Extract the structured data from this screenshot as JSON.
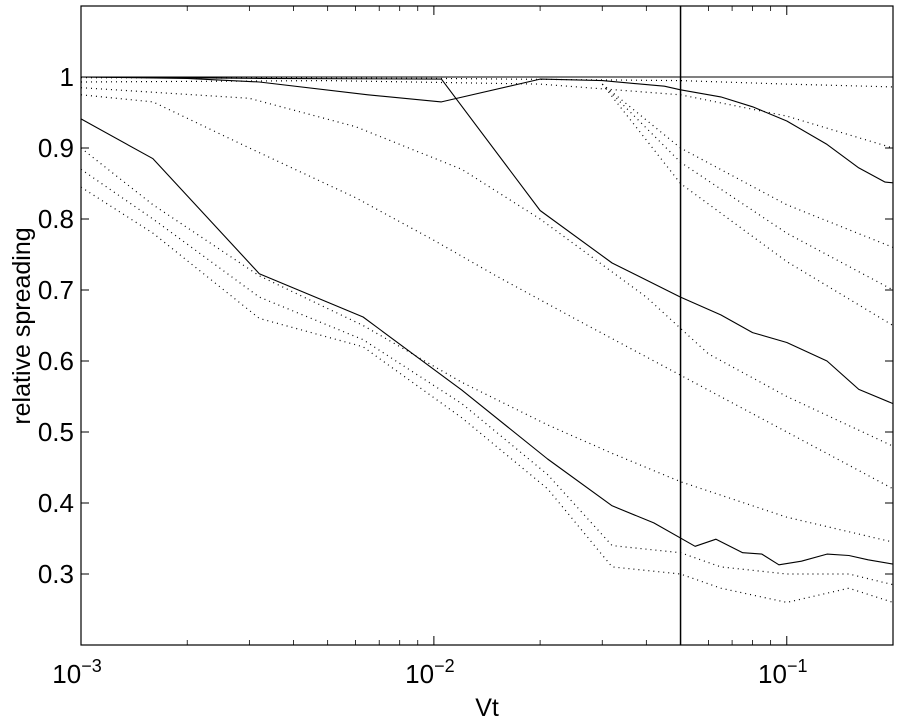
{
  "chart_data": {
    "type": "line",
    "xscale": "log",
    "xlim": [
      0.001,
      0.2
    ],
    "ylim": [
      0.2,
      1.1
    ],
    "xlabel": "Vt",
    "ylabel": "relative spreading",
    "grid": false,
    "x_ticks": [
      {
        "value": 0.001,
        "base": "10",
        "exp": "−3"
      },
      {
        "value": 0.01,
        "base": "10",
        "exp": "−2"
      },
      {
        "value": 0.1,
        "base": "10",
        "exp": "−1"
      }
    ],
    "y_ticks": [
      0.3,
      0.4,
      0.5,
      0.6,
      0.7,
      0.8,
      0.9,
      1
    ],
    "y_tick_labels": [
      "0.3",
      "0.4",
      "0.5",
      "0.6",
      "0.7",
      "0.8",
      "0.9",
      "1"
    ],
    "vertical_marker": 0.05,
    "series": [
      {
        "style": "solid",
        "points": [
          [
            0.001,
            1
          ],
          [
            0.2,
            1
          ]
        ]
      },
      {
        "style": "solid",
        "points": [
          [
            0.001,
            1
          ],
          [
            0.002,
            0.998
          ],
          [
            0.0032,
            0.993
          ],
          [
            0.0065,
            0.975
          ],
          [
            0.0105,
            0.965
          ],
          [
            0.02,
            0.997
          ],
          [
            0.03,
            0.995
          ],
          [
            0.045,
            0.987
          ],
          [
            0.05,
            0.982
          ],
          [
            0.065,
            0.972
          ],
          [
            0.08,
            0.958
          ],
          [
            0.1,
            0.938
          ],
          [
            0.13,
            0.905
          ],
          [
            0.16,
            0.872
          ],
          [
            0.19,
            0.852
          ],
          [
            0.2,
            0.851
          ]
        ]
      },
      {
        "style": "solid",
        "points": [
          [
            0.001,
            1
          ],
          [
            0.0032,
            0.998
          ],
          [
            0.0105,
            0.997
          ],
          [
            0.02,
            0.812
          ],
          [
            0.032,
            0.738
          ],
          [
            0.05,
            0.69
          ],
          [
            0.065,
            0.665
          ],
          [
            0.08,
            0.64
          ],
          [
            0.1,
            0.626
          ],
          [
            0.13,
            0.6
          ],
          [
            0.16,
            0.56
          ],
          [
            0.2,
            0.54
          ]
        ]
      },
      {
        "style": "solid",
        "points": [
          [
            0.001,
            0.941
          ],
          [
            0.0016,
            0.885
          ],
          [
            0.0032,
            0.723
          ],
          [
            0.0063,
            0.662
          ],
          [
            0.012,
            0.559
          ],
          [
            0.021,
            0.462
          ],
          [
            0.032,
            0.396
          ],
          [
            0.042,
            0.372
          ],
          [
            0.055,
            0.339
          ],
          [
            0.063,
            0.349
          ],
          [
            0.075,
            0.33
          ],
          [
            0.085,
            0.328
          ],
          [
            0.095,
            0.313
          ],
          [
            0.11,
            0.318
          ],
          [
            0.13,
            0.328
          ],
          [
            0.15,
            0.326
          ],
          [
            0.17,
            0.32
          ],
          [
            0.2,
            0.314
          ]
        ]
      },
      {
        "style": "dotted",
        "points": [
          [
            0.001,
            0.999
          ],
          [
            0.01,
            0.998
          ],
          [
            0.05,
            0.995
          ],
          [
            0.1,
            0.99
          ],
          [
            0.2,
            0.986
          ]
        ]
      },
      {
        "style": "dotted",
        "points": [
          [
            0.001,
            0.993
          ],
          [
            0.005,
            0.995
          ],
          [
            0.02,
            0.99
          ],
          [
            0.05,
            0.975
          ],
          [
            0.1,
            0.945
          ],
          [
            0.2,
            0.9
          ]
        ]
      },
      {
        "style": "dotted",
        "points": [
          [
            0.001,
            0.985
          ],
          [
            0.003,
            0.97
          ],
          [
            0.006,
            0.93
          ],
          [
            0.012,
            0.87
          ],
          [
            0.02,
            0.8
          ],
          [
            0.04,
            0.69
          ],
          [
            0.06,
            0.61
          ],
          [
            0.1,
            0.55
          ],
          [
            0.2,
            0.48
          ]
        ]
      },
      {
        "style": "dotted",
        "points": [
          [
            0.001,
            0.975
          ],
          [
            0.0016,
            0.965
          ],
          [
            0.003,
            0.9
          ],
          [
            0.006,
            0.83
          ],
          [
            0.01,
            0.77
          ],
          [
            0.015,
            0.72
          ],
          [
            0.025,
            0.66
          ],
          [
            0.05,
            0.58
          ],
          [
            0.1,
            0.5
          ],
          [
            0.2,
            0.42
          ]
        ]
      },
      {
        "style": "dotted",
        "points": [
          [
            0.001,
            0.9
          ],
          [
            0.0016,
            0.82
          ],
          [
            0.0032,
            0.72
          ],
          [
            0.0063,
            0.65
          ],
          [
            0.012,
            0.57
          ],
          [
            0.021,
            0.51
          ],
          [
            0.032,
            0.47
          ],
          [
            0.05,
            0.43
          ],
          [
            0.1,
            0.38
          ],
          [
            0.2,
            0.345
          ]
        ]
      },
      {
        "style": "dotted",
        "points": [
          [
            0.001,
            0.87
          ],
          [
            0.0016,
            0.8
          ],
          [
            0.0032,
            0.69
          ],
          [
            0.0063,
            0.63
          ],
          [
            0.012,
            0.54
          ],
          [
            0.021,
            0.44
          ],
          [
            0.032,
            0.34
          ],
          [
            0.05,
            0.33
          ],
          [
            0.065,
            0.31
          ],
          [
            0.1,
            0.3
          ],
          [
            0.15,
            0.3
          ],
          [
            0.2,
            0.285
          ]
        ]
      },
      {
        "style": "dotted",
        "points": [
          [
            0.001,
            0.845
          ],
          [
            0.0016,
            0.78
          ],
          [
            0.0032,
            0.66
          ],
          [
            0.0063,
            0.62
          ],
          [
            0.012,
            0.52
          ],
          [
            0.021,
            0.42
          ],
          [
            0.032,
            0.31
          ],
          [
            0.05,
            0.3
          ],
          [
            0.065,
            0.28
          ],
          [
            0.1,
            0.26
          ],
          [
            0.15,
            0.28
          ],
          [
            0.2,
            0.26
          ]
        ]
      },
      {
        "style": "dotted",
        "points": [
          [
            0.03,
            0.99
          ],
          [
            0.05,
            0.85
          ],
          [
            0.1,
            0.74
          ],
          [
            0.2,
            0.65
          ]
        ]
      },
      {
        "style": "dotted",
        "points": [
          [
            0.03,
            0.99
          ],
          [
            0.05,
            0.9
          ],
          [
            0.1,
            0.82
          ],
          [
            0.2,
            0.76
          ]
        ]
      },
      {
        "style": "dotted",
        "points": [
          [
            0.03,
            0.99
          ],
          [
            0.05,
            0.88
          ],
          [
            0.1,
            0.78
          ],
          [
            0.2,
            0.7
          ]
        ]
      }
    ]
  }
}
